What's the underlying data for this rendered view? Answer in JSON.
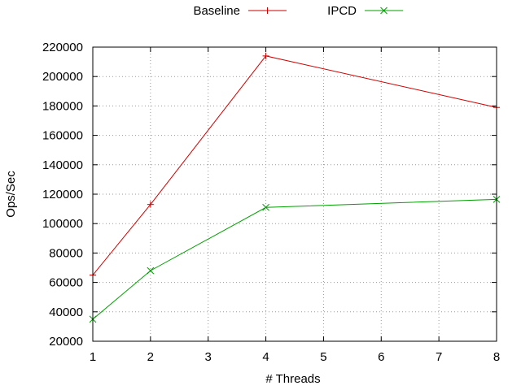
{
  "chart_data": {
    "type": "line",
    "title": "",
    "xlabel": "# Threads",
    "ylabel": "Ops/Sec",
    "xlim": [
      1,
      8
    ],
    "ylim": [
      20000,
      220000
    ],
    "xticks": [
      "1",
      "2",
      "3",
      "4",
      "5",
      "6",
      "7",
      "8"
    ],
    "yticks": [
      "20000",
      "40000",
      "60000",
      "80000",
      "100000",
      "120000",
      "140000",
      "160000",
      "180000",
      "200000",
      "220000"
    ],
    "grid": true,
    "legend_position": "top-center",
    "series": [
      {
        "name": "Baseline",
        "color": "#cc0000",
        "marker": "plus",
        "x": [
          1,
          2,
          4,
          8
        ],
        "y": [
          65000,
          113000,
          214000,
          179000
        ]
      },
      {
        "name": "IPCD",
        "color": "#00a000",
        "marker": "cross",
        "x": [
          1,
          2,
          4,
          8
        ],
        "y": [
          35000,
          68000,
          111000,
          116500
        ]
      }
    ]
  }
}
